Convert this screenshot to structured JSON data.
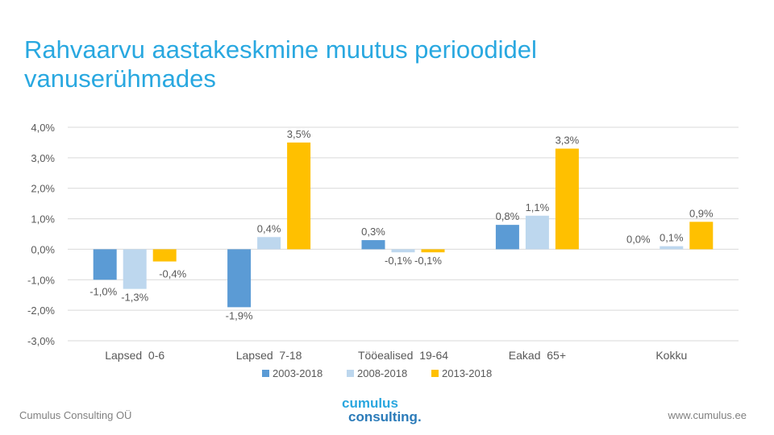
{
  "slide": {
    "title_line1": "Rahvaarvu aastakeskmine muutus perioodidel",
    "title_line2": "vanuserühmades",
    "footer_left": "Cumulus Consulting OÜ",
    "footer_right": "www.cumulus.ee",
    "logo_line1": "cumulus",
    "logo_line2": "consulting."
  },
  "colors": {
    "title": "#29a8e0",
    "series": [
      "#5b9bd5",
      "#bdd7ee",
      "#ffc000"
    ]
  },
  "chart_data": {
    "type": "bar",
    "title": "Rahvaarvu aastakeskmine muutus perioodidel vanuserühmades",
    "xlabel": "",
    "ylabel": "",
    "ylim": [
      -3.0,
      4.0
    ],
    "yticks": [
      4.0,
      3.0,
      2.0,
      1.0,
      0.0,
      -1.0,
      -2.0,
      -3.0
    ],
    "ytick_labels": [
      "4,0%",
      "3,0%",
      "2,0%",
      "1,0%",
      "0,0%",
      "-1,0%",
      "-2,0%",
      "-3,0%"
    ],
    "grid": true,
    "legend_position": "bottom",
    "categories": [
      "Lapsed  0-6",
      "Lapsed  7-18",
      "Tööealised  19-64",
      "Eakad  65+",
      "Kokku"
    ],
    "series": [
      {
        "name": "2003-2018",
        "values": [
          -1.0,
          -1.9,
          0.3,
          0.8,
          0.0
        ],
        "labels": [
          "-1,0%",
          "-1,9%",
          "0,3%",
          "0,8%",
          "0,0%"
        ]
      },
      {
        "name": "2008-2018",
        "values": [
          -1.3,
          0.4,
          -0.1,
          1.1,
          0.1
        ],
        "labels": [
          "-1,3%",
          "0,4%",
          "-0,1%",
          "1,1%",
          "0,1%"
        ]
      },
      {
        "name": "2013-2018",
        "values": [
          -0.4,
          3.5,
          -0.1,
          3.3,
          0.9
        ],
        "labels": [
          "-0,4%",
          "3,5%",
          "-0,1%",
          "3,3%",
          "0,9%"
        ]
      }
    ]
  }
}
